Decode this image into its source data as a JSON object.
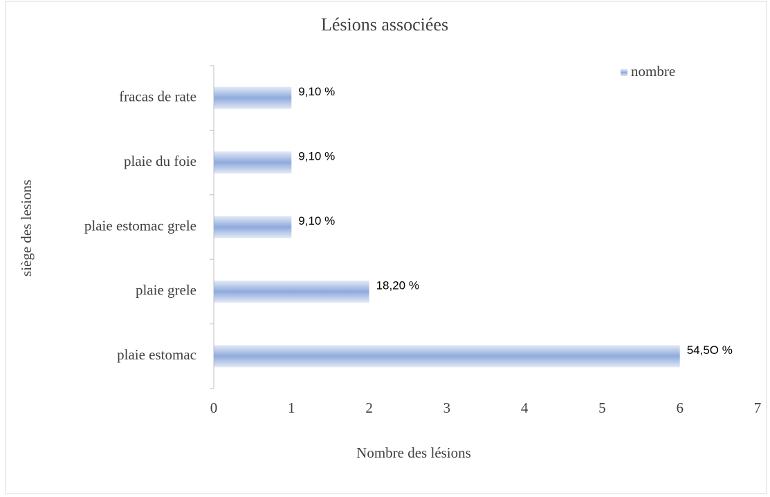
{
  "chart_data": {
    "type": "bar",
    "orientation": "horizontal",
    "title": "Lésions associées",
    "x_label": "Nombre des lésions",
    "y_label": "siège des lesions",
    "categories": [
      "fracas de rate",
      "plaie du foie",
      "plaie estomac grele",
      "plaie grele",
      "plaie estomac"
    ],
    "series": [
      {
        "name": "nombre",
        "color": "#8faadc",
        "values": [
          1,
          1,
          1,
          2,
          6
        ]
      }
    ],
    "annotations": [
      "9,10 %",
      "9,10 %",
      "9,10 %",
      "18,20 %",
      "54,5O %"
    ],
    "xlim": [
      0,
      7
    ],
    "xticks": [
      0,
      1,
      2,
      3,
      4,
      5,
      6,
      7
    ],
    "grid": false,
    "legend": "top-right"
  }
}
